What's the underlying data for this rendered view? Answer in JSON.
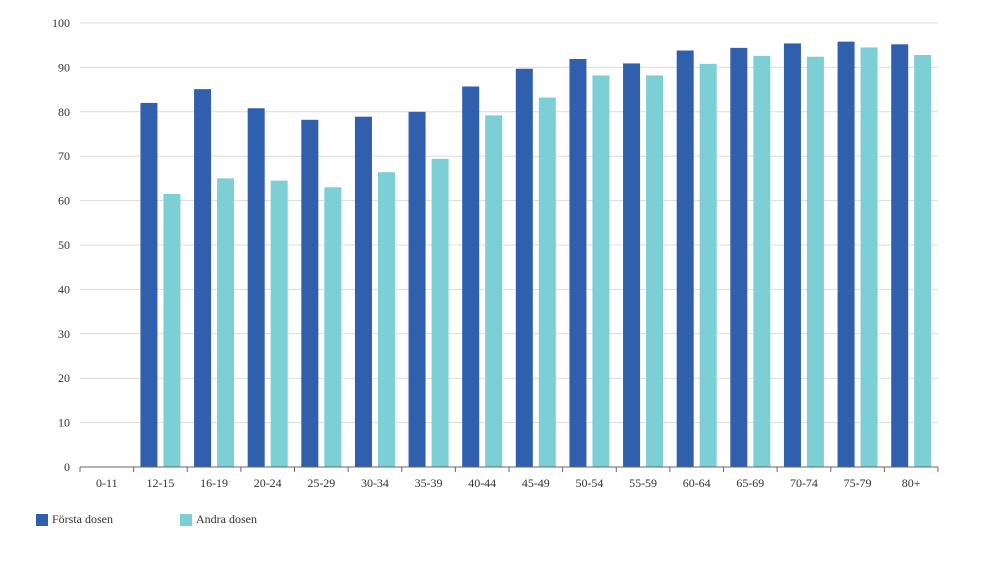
{
  "chart_data": {
    "type": "bar",
    "title": "",
    "xlabel": "",
    "ylabel": "",
    "ylim": [
      0,
      100
    ],
    "yticks": [
      0,
      10,
      20,
      30,
      40,
      50,
      60,
      70,
      80,
      90,
      100
    ],
    "grid": true,
    "legend_position": "bottom-left",
    "categories": [
      "0-11",
      "12-15",
      "16-19",
      "20-24",
      "25-29",
      "30-34",
      "35-39",
      "40-44",
      "45-49",
      "50-54",
      "55-59",
      "60-64",
      "65-69",
      "70-74",
      "75-79",
      "80+"
    ],
    "series": [
      {
        "name": "Första dosen",
        "color": "#2f5fad",
        "values": [
          0,
          82.0,
          85.1,
          80.8,
          78.2,
          78.9,
          80.0,
          85.7,
          89.7,
          91.9,
          90.9,
          93.8,
          94.4,
          95.4,
          95.8,
          95.2
        ]
      },
      {
        "name": "Andra dosen",
        "color": "#7dcfd6",
        "values": [
          0,
          61.5,
          65.0,
          64.5,
          63.0,
          66.4,
          69.4,
          79.2,
          83.2,
          88.2,
          88.2,
          90.8,
          92.6,
          92.4,
          94.5,
          92.8
        ]
      }
    ]
  }
}
